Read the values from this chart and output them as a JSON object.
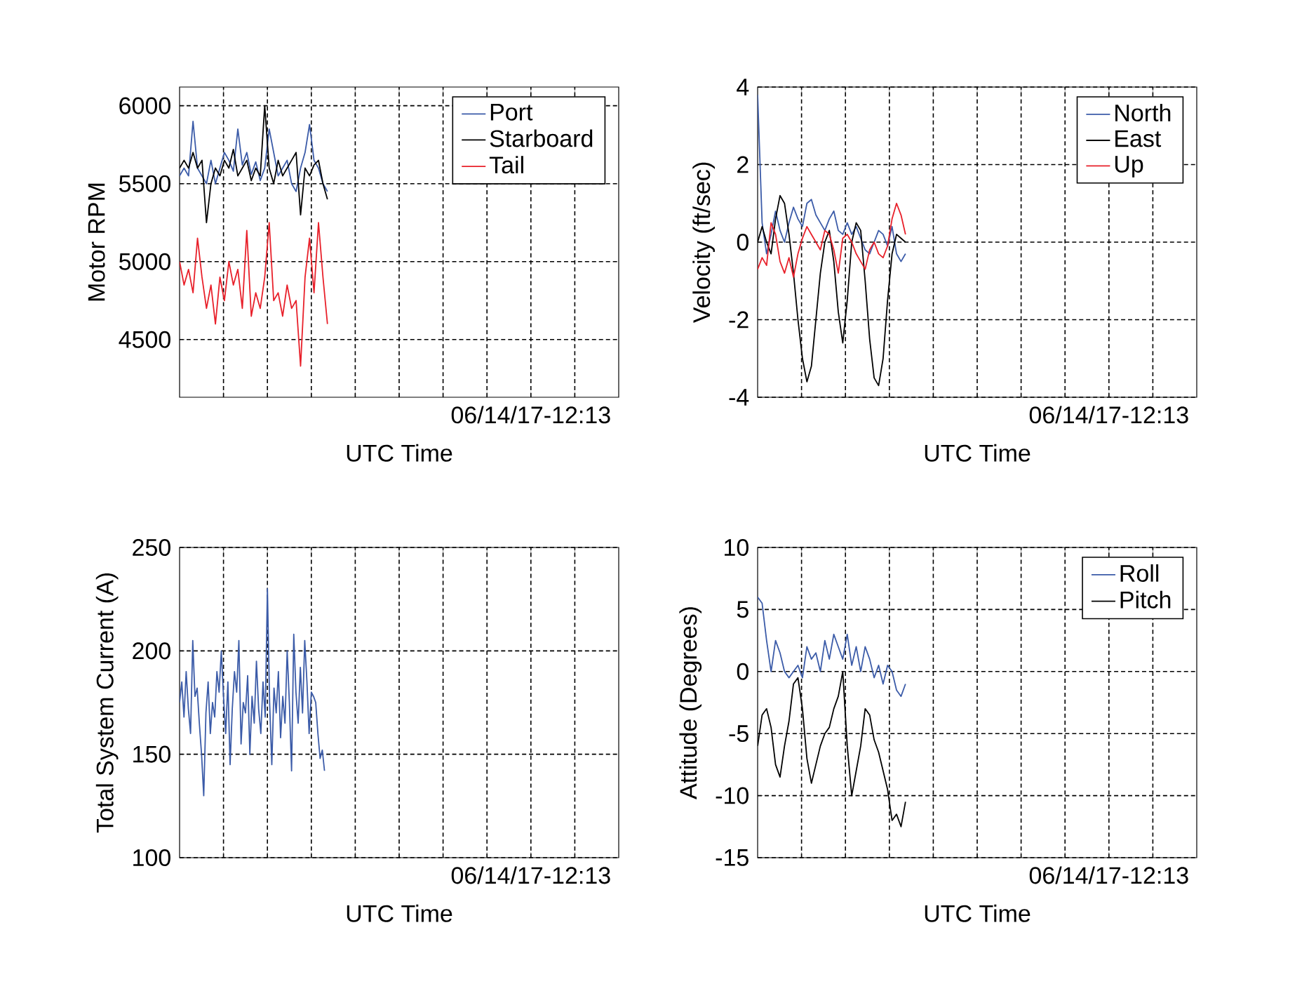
{
  "chart_data": [
    {
      "type": "line",
      "xlabel": "UTC Time",
      "ylabel": "Motor RPM",
      "legend": "top right",
      "grid": true,
      "annotations": [
        "06/14/17-12:13"
      ],
      "categories": [
        null,
        null,
        null,
        null,
        null,
        null,
        null,
        null,
        null,
        null,
        null,
        null,
        null,
        null,
        null,
        null,
        null,
        null,
        null,
        null,
        null,
        null,
        null,
        null,
        null,
        null,
        null,
        null,
        null,
        null,
        null,
        null,
        null,
        null,
        null,
        null,
        null,
        null,
        null,
        null,
        null,
        null,
        null,
        null,
        null,
        null,
        null,
        null,
        null,
        null,
        null,
        null,
        null,
        null,
        null,
        null,
        null,
        null,
        null,
        null,
        null,
        null,
        null,
        null,
        null,
        null,
        null,
        null,
        null,
        null,
        null,
        null,
        null,
        null,
        null,
        null,
        null,
        null,
        null,
        null,
        null,
        null,
        null,
        null,
        null,
        null,
        null,
        null,
        null,
        null,
        null,
        null,
        null,
        null,
        null,
        null,
        null,
        null,
        null
      ],
      "ylim": [
        4130,
        6120
      ],
      "yticks": [
        4500,
        5000,
        5500,
        6000
      ],
      "series": [
        {
          "name": "Port",
          "color": "#3b5ba8",
          "values": [
            5550,
            5600,
            5550,
            5900,
            5600,
            5550,
            5500,
            5650,
            5500,
            5600,
            5700,
            5650,
            5580,
            5850,
            5620,
            5700,
            5560,
            5640,
            5520,
            5600,
            5850,
            5700,
            5550,
            5600,
            5650,
            5500,
            5450,
            5600,
            5700,
            5880,
            5650,
            5600,
            5500,
            5450,
            null,
            null,
            null,
            null,
            null,
            null,
            null,
            null,
            null,
            null,
            null,
            null,
            null,
            null,
            null,
            null,
            null,
            null,
            null,
            null,
            null,
            null,
            null,
            null,
            null,
            null,
            null,
            null,
            null,
            null,
            null,
            null,
            null,
            null,
            null,
            null,
            null,
            null,
            null,
            null,
            null,
            null,
            null,
            null,
            null,
            null,
            null,
            null,
            null,
            null,
            null,
            null,
            null,
            null,
            null,
            null,
            null,
            null,
            null,
            null,
            null,
            null,
            null,
            null,
            null
          ]
        },
        {
          "name": "Starboard",
          "color": "#000000",
          "values": [
            5600,
            5650,
            5600,
            5700,
            5600,
            5650,
            5250,
            5500,
            5600,
            5550,
            5650,
            5600,
            5720,
            5550,
            5600,
            5650,
            5520,
            5600,
            5550,
            6000,
            5600,
            5500,
            5650,
            5550,
            5600,
            5650,
            5700,
            5300,
            5600,
            5550,
            5620,
            5650,
            5500,
            5400,
            null,
            null,
            null,
            null,
            null,
            null,
            null,
            null,
            null,
            null,
            null,
            null,
            null,
            null,
            null,
            null,
            null,
            null,
            null,
            null,
            null,
            null,
            null,
            null,
            null,
            null,
            null,
            null,
            null,
            null,
            null,
            null,
            null,
            null,
            null,
            null,
            null,
            null,
            null,
            null,
            null,
            null,
            null,
            null,
            null,
            null,
            null,
            null,
            null,
            null,
            null,
            null,
            null,
            null,
            null,
            null,
            null,
            null,
            null,
            null,
            null,
            null,
            null,
            null,
            null
          ]
        },
        {
          "name": "Tail",
          "color": "#e8202a",
          "values": [
            5000,
            4850,
            4950,
            4800,
            5150,
            4900,
            4700,
            4850,
            4600,
            4900,
            4750,
            5000,
            4850,
            4950,
            4700,
            5200,
            4650,
            4800,
            4700,
            4900,
            5250,
            4750,
            4800,
            4650,
            4850,
            4700,
            4750,
            4330,
            4900,
            5150,
            4800,
            5250,
            4900,
            4600,
            null,
            null,
            null,
            null,
            null,
            null,
            null,
            null,
            null,
            null,
            null,
            null,
            null,
            null,
            null,
            null,
            null,
            null,
            null,
            null,
            null,
            null,
            null,
            null,
            null,
            null,
            null,
            null,
            null,
            null,
            null,
            null,
            null,
            null,
            null,
            null,
            null,
            null,
            null,
            null,
            null,
            null,
            null,
            null,
            null,
            null,
            null,
            null,
            null,
            null,
            null,
            null,
            null,
            null,
            null,
            null,
            null,
            null,
            null,
            null,
            null,
            null,
            null,
            null,
            null
          ]
        }
      ]
    },
    {
      "type": "line",
      "xlabel": "UTC Time",
      "ylabel": "Velocity (ft/sec)",
      "legend": "top right",
      "grid": true,
      "annotations": [
        "06/14/17-12:13"
      ],
      "categories": [
        null,
        null,
        null,
        null,
        null,
        null,
        null,
        null,
        null,
        null,
        null,
        null,
        null,
        null,
        null,
        null,
        null,
        null,
        null,
        null,
        null,
        null,
        null,
        null,
        null,
        null,
        null,
        null,
        null,
        null,
        null,
        null,
        null,
        null,
        null,
        null,
        null,
        null,
        null,
        null,
        null,
        null,
        null,
        null,
        null,
        null,
        null,
        null,
        null,
        null,
        null,
        null,
        null,
        null,
        null,
        null,
        null,
        null,
        null,
        null,
        null,
        null,
        null,
        null,
        null,
        null,
        null,
        null,
        null,
        null,
        null,
        null,
        null,
        null,
        null,
        null,
        null,
        null,
        null,
        null,
        null,
        null,
        null,
        null,
        null,
        null,
        null,
        null,
        null,
        null,
        null,
        null,
        null,
        null,
        null,
        null,
        null,
        null,
        null
      ],
      "ylim": [
        -4,
        4
      ],
      "yticks": [
        -4,
        -2,
        0,
        2,
        4
      ],
      "series": [
        {
          "name": "North",
          "color": "#3b5ba8",
          "values": [
            3.8,
            0.5,
            -0.3,
            0.2,
            0.8,
            0.3,
            0.0,
            0.5,
            0.9,
            0.6,
            0.4,
            1.0,
            1.1,
            0.7,
            0.5,
            0.3,
            0.6,
            0.8,
            0.3,
            0.2,
            0.5,
            0.2,
            0.4,
            0.1,
            -0.2,
            -0.3,
            0.0,
            0.3,
            0.2,
            -0.1,
            0.4,
            -0.3,
            -0.5,
            -0.3,
            null,
            null,
            null,
            null,
            null,
            null,
            null,
            null,
            null,
            null,
            null,
            null,
            null,
            null,
            null,
            null,
            null,
            null,
            null,
            null,
            null,
            null,
            null,
            null,
            null,
            null,
            null,
            null,
            null,
            null,
            null,
            null,
            null,
            null,
            null,
            null,
            null,
            null,
            null,
            null,
            null,
            null,
            null,
            null,
            null,
            null,
            null,
            null,
            null,
            null,
            null,
            null,
            null,
            null,
            null,
            null,
            null,
            null,
            null,
            null,
            null,
            null,
            null,
            null,
            null
          ]
        },
        {
          "name": "East",
          "color": "#000000",
          "values": [
            0.0,
            0.4,
            0.0,
            -0.3,
            0.6,
            1.2,
            1.0,
            0.2,
            -0.8,
            -2.0,
            -3.0,
            -3.6,
            -3.2,
            -2.0,
            -0.8,
            0.0,
            0.3,
            -0.5,
            -1.8,
            -2.6,
            -1.5,
            0.0,
            0.5,
            0.3,
            -1.0,
            -2.5,
            -3.5,
            -3.7,
            -3.0,
            -1.5,
            -0.3,
            0.2,
            0.1,
            0.0,
            null,
            null,
            null,
            null,
            null,
            null,
            null,
            null,
            null,
            null,
            null,
            null,
            null,
            null,
            null,
            null,
            null,
            null,
            null,
            null,
            null,
            null,
            null,
            null,
            null,
            null,
            null,
            null,
            null,
            null,
            null,
            null,
            null,
            null,
            null,
            null,
            null,
            null,
            null,
            null,
            null,
            null,
            null,
            null,
            null,
            null,
            null,
            null,
            null,
            null,
            null,
            null,
            null,
            null,
            null,
            null,
            null,
            null,
            null,
            null,
            null,
            null,
            null,
            null,
            null
          ]
        },
        {
          "name": "Up",
          "color": "#e8202a",
          "values": [
            -0.7,
            -0.4,
            -0.6,
            0.5,
            0.2,
            -0.5,
            -0.8,
            -0.4,
            -0.9,
            -0.3,
            0.1,
            0.4,
            0.2,
            0.0,
            -0.2,
            0.3,
            0.2,
            -0.2,
            -0.8,
            0.1,
            0.2,
            0.0,
            -0.3,
            -0.5,
            -0.7,
            -0.2,
            0.0,
            -0.3,
            -0.4,
            -0.1,
            0.6,
            1.0,
            0.7,
            0.2,
            null,
            null,
            null,
            null,
            null,
            null,
            null,
            null,
            null,
            null,
            null,
            null,
            null,
            null,
            null,
            null,
            null,
            null,
            null,
            null,
            null,
            null,
            null,
            null,
            null,
            null,
            null,
            null,
            null,
            null,
            null,
            null,
            null,
            null,
            null,
            null,
            null,
            null,
            null,
            null,
            null,
            null,
            null,
            null,
            null,
            null,
            null,
            null,
            null,
            null,
            null,
            null,
            null,
            null,
            null,
            null,
            null,
            null,
            null,
            null,
            null,
            null,
            null,
            null,
            null
          ]
        }
      ]
    },
    {
      "type": "line",
      "xlabel": "UTC Time",
      "ylabel": "Total System Current (A)",
      "grid": true,
      "annotations": [
        "06/14/17-12:13"
      ],
      "categories": [
        null,
        null,
        null,
        null,
        null,
        null,
        null,
        null,
        null,
        null,
        null,
        null,
        null,
        null,
        null,
        null,
        null,
        null,
        null,
        null,
        null,
        null,
        null,
        null,
        null,
        null,
        null,
        null,
        null,
        null,
        null,
        null,
        null,
        null,
        null,
        null,
        null,
        null,
        null,
        null,
        null,
        null,
        null,
        null,
        null,
        null,
        null,
        null,
        null,
        null,
        null,
        null,
        null,
        null,
        null,
        null,
        null,
        null,
        null,
        null,
        null,
        null,
        null,
        null,
        null,
        null,
        null,
        null,
        null,
        null,
        null,
        null,
        null,
        null,
        null,
        null,
        null,
        null,
        null,
        null,
        null,
        null,
        null,
        null,
        null,
        null,
        null,
        null,
        null,
        null,
        null,
        null,
        null,
        null,
        null,
        null,
        null,
        null,
        null,
        null,
        null,
        null,
        null,
        null,
        null,
        null,
        null,
        null,
        null,
        null,
        null,
        null,
        null,
        null,
        null,
        null,
        null,
        null,
        null,
        null,
        null,
        null,
        null,
        null,
        null,
        null,
        null,
        null,
        null,
        null,
        null,
        null,
        null,
        null,
        null,
        null,
        null,
        null,
        null,
        null,
        null,
        null,
        null,
        null,
        null,
        null,
        null,
        null,
        null,
        null,
        null,
        null,
        null,
        null,
        null,
        null,
        null,
        null,
        null,
        null,
        null,
        null,
        null,
        null,
        null,
        null,
        null,
        null,
        null,
        null,
        null,
        null,
        null,
        null,
        null,
        null,
        null,
        null,
        null,
        null,
        null,
        null,
        null,
        null,
        null,
        null,
        null,
        null,
        null,
        null,
        null,
        null,
        null,
        null,
        null,
        null,
        null,
        null,
        null,
        null,
        null
      ],
      "ylim": [
        100,
        250
      ],
      "yticks": [
        100,
        150,
        200,
        250
      ],
      "series": [
        {
          "color": "#3b5ba8",
          "values": [
            175,
            185,
            168,
            190,
            172,
            160,
            205,
            178,
            182,
            165,
            150,
            130,
            170,
            185,
            160,
            175,
            168,
            190,
            180,
            200,
            178,
            160,
            185,
            145,
            172,
            190,
            180,
            205,
            155,
            175,
            170,
            188,
            150,
            178,
            165,
            195,
            172,
            160,
            185,
            168,
            230,
            175,
            145,
            182,
            170,
            190,
            158,
            178,
            165,
            200,
            175,
            142,
            208,
            180,
            165,
            192,
            170,
            205,
            185,
            160,
            180,
            178,
            175,
            160,
            148,
            152,
            142,
            null,
            null,
            null,
            null,
            null,
            null,
            null,
            null,
            null,
            null,
            null,
            null,
            null,
            null,
            null,
            null,
            null,
            null,
            null,
            null,
            null,
            null,
            null,
            null,
            null,
            null,
            null,
            null,
            null,
            null,
            null,
            null,
            null,
            null,
            null,
            null,
            null,
            null,
            null,
            null,
            null,
            null,
            null,
            null,
            null,
            null,
            null,
            null,
            null,
            null,
            null,
            null,
            null,
            null,
            null,
            null,
            null,
            null,
            null,
            null,
            null,
            null,
            null,
            null,
            null,
            null,
            null,
            null,
            null,
            null,
            null,
            null,
            null,
            null,
            null,
            null,
            null,
            null,
            null,
            null,
            null,
            null,
            null,
            null,
            null,
            null,
            null,
            null,
            null,
            null,
            null,
            null,
            null,
            null,
            null,
            null,
            null,
            null,
            null,
            null,
            null,
            null,
            null,
            null,
            null,
            null,
            null,
            null,
            null,
            null,
            null,
            null,
            null,
            null,
            null,
            null,
            null,
            null,
            null,
            null,
            null,
            null,
            null,
            null,
            null,
            null,
            null,
            null,
            null,
            null,
            null,
            null,
            null,
            null
          ]
        }
      ]
    },
    {
      "type": "line",
      "xlabel": "UTC Time",
      "ylabel": "Attitude (Degrees)",
      "legend": "top right",
      "grid": true,
      "annotations": [
        "06/14/17-12:13"
      ],
      "categories": [
        null,
        null,
        null,
        null,
        null,
        null,
        null,
        null,
        null,
        null,
        null,
        null,
        null,
        null,
        null,
        null,
        null,
        null,
        null,
        null,
        null,
        null,
        null,
        null,
        null,
        null,
        null,
        null,
        null,
        null,
        null,
        null,
        null,
        null,
        null,
        null,
        null,
        null,
        null,
        null,
        null,
        null,
        null,
        null,
        null,
        null,
        null,
        null,
        null,
        null,
        null,
        null,
        null,
        null,
        null,
        null,
        null,
        null,
        null,
        null,
        null,
        null,
        null,
        null,
        null,
        null,
        null,
        null,
        null,
        null,
        null,
        null,
        null,
        null,
        null,
        null,
        null,
        null,
        null,
        null,
        null,
        null,
        null,
        null,
        null,
        null,
        null,
        null,
        null,
        null,
        null,
        null,
        null,
        null,
        null,
        null,
        null,
        null,
        null
      ],
      "ylim": [
        -15,
        10
      ],
      "yticks": [
        -15,
        -10,
        -5,
        0,
        5,
        10
      ],
      "series": [
        {
          "name": "Roll",
          "color": "#3b5ba8",
          "values": [
            6.0,
            5.5,
            2.5,
            0.0,
            2.5,
            1.5,
            0.0,
            -0.5,
            0.0,
            0.5,
            -0.5,
            2.0,
            1.0,
            1.5,
            0.0,
            2.5,
            1.0,
            3.0,
            2.0,
            1.0,
            3.0,
            0.5,
            2.0,
            0.0,
            2.0,
            1.0,
            -0.5,
            0.5,
            -1.0,
            0.5,
            0.0,
            -1.5,
            -2.0,
            -1.0,
            null,
            null,
            null,
            null,
            null,
            null,
            null,
            null,
            null,
            null,
            null,
            null,
            null,
            null,
            null,
            null,
            null,
            null,
            null,
            null,
            null,
            null,
            null,
            null,
            null,
            null,
            null,
            null,
            null,
            null,
            null,
            null,
            null,
            null,
            null,
            null,
            null,
            null,
            null,
            null,
            null,
            null,
            null,
            null,
            null,
            null,
            null,
            null,
            null,
            null,
            null,
            null,
            null,
            null,
            null,
            null,
            null,
            null,
            null,
            null,
            null,
            null,
            null,
            null,
            null
          ]
        },
        {
          "name": "Pitch",
          "color": "#000000",
          "values": [
            -6.0,
            -3.5,
            -3.0,
            -4.5,
            -7.5,
            -8.5,
            -6.0,
            -4.0,
            -1.0,
            -0.5,
            -3.0,
            -7.0,
            -9.0,
            -7.5,
            -6.0,
            -5.0,
            -4.5,
            -3.0,
            -2.0,
            0.0,
            -6.0,
            -10.0,
            -8.0,
            -6.0,
            -3.0,
            -3.5,
            -5.5,
            -6.5,
            -8.0,
            -9.5,
            -12.0,
            -11.5,
            -12.5,
            -10.5,
            null,
            null,
            null,
            null,
            null,
            null,
            null,
            null,
            null,
            null,
            null,
            null,
            null,
            null,
            null,
            null,
            null,
            null,
            null,
            null,
            null,
            null,
            null,
            null,
            null,
            null,
            null,
            null,
            null,
            null,
            null,
            null,
            null,
            null,
            null,
            null,
            null,
            null,
            null,
            null,
            null,
            null,
            null,
            null,
            null,
            null,
            null,
            null,
            null,
            null,
            null,
            null,
            null,
            null,
            null,
            null,
            null,
            null,
            null,
            null,
            null,
            null,
            null,
            null,
            null
          ]
        }
      ]
    }
  ]
}
